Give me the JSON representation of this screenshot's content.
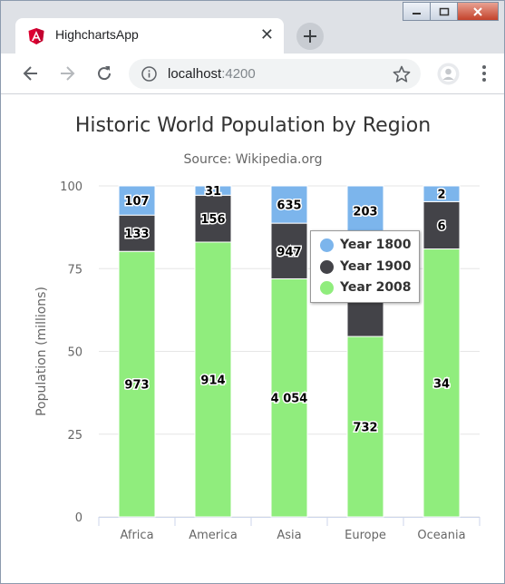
{
  "browser": {
    "tab_title": "HighchartsApp",
    "tab_close": "✕",
    "url_host": "localhost",
    "url_port": ":4200",
    "icons": [
      "angular-icon",
      "back-icon",
      "forward-icon",
      "reload-icon",
      "info-icon",
      "star-icon",
      "profile-icon",
      "menu-icon",
      "new-tab-icon"
    ]
  },
  "colors": {
    "year1800": "#7cb5ec",
    "year1900": "#434348",
    "year2008": "#90ed7d",
    "title": "#333333",
    "subtitle": "#666666",
    "grid": "#e6e6e6"
  },
  "chart_data": {
    "type": "bar",
    "stacking": "percent",
    "title": "Historic World Population by Region",
    "subtitle": "Source: Wikipedia.org",
    "ylabel": "Population (millions)",
    "xlabel": "",
    "ylim": [
      0,
      100
    ],
    "yticks": [
      "0",
      "25",
      "50",
      "75",
      "100"
    ],
    "categories": [
      "Africa",
      "America",
      "Asia",
      "Europe",
      "Oceania"
    ],
    "series": [
      {
        "name": "Year 1800",
        "values": [
          107,
          31,
          635,
          203,
          2
        ],
        "labels": [
          "107",
          "31",
          "635",
          "203",
          "2"
        ]
      },
      {
        "name": "Year 1900",
        "values": [
          133,
          156,
          947,
          408,
          6
        ],
        "labels": [
          "133",
          "156",
          "947",
          "",
          "6"
        ]
      },
      {
        "name": "Year 2008",
        "values": [
          973,
          914,
          4054,
          732,
          34
        ],
        "labels": [
          "973",
          "914",
          "4 054",
          "732",
          "34"
        ]
      }
    ],
    "grid": true,
    "legend": "top-right"
  }
}
